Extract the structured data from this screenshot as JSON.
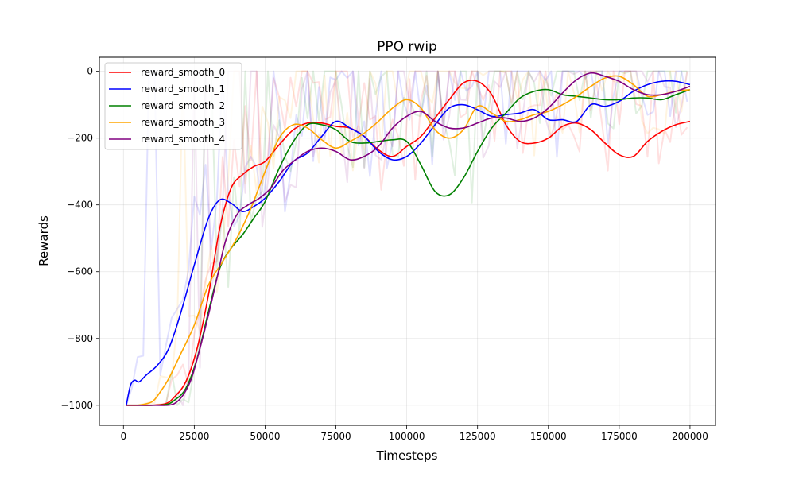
{
  "chart_data": {
    "type": "line",
    "title": "PPO rwip",
    "xlabel": "Timesteps",
    "ylabel": "Rewards",
    "xlim": [
      -8500,
      209000
    ],
    "ylim": [
      -1060,
      42
    ],
    "xticks": [
      0,
      25000,
      50000,
      75000,
      100000,
      125000,
      150000,
      175000,
      200000
    ],
    "yticks": [
      -1000,
      -800,
      -600,
      -400,
      -200,
      0
    ],
    "grid": true,
    "legend_position": "top-left",
    "series": [
      {
        "name": "reward_smooth_0",
        "color": "#ff0000",
        "x": [
          1000,
          5000,
          10000,
          15000,
          18000,
          22000,
          26000,
          30000,
          34000,
          38000,
          42000,
          46000,
          50000,
          55000,
          60000,
          65000,
          70000,
          75000,
          80000,
          85000,
          90000,
          95000,
          100000,
          105000,
          110000,
          115000,
          120000,
          125000,
          130000,
          135000,
          140000,
          145000,
          150000,
          155000,
          160000,
          165000,
          170000,
          175000,
          180000,
          185000,
          190000,
          195000,
          200000
        ],
        "y": [
          -1000,
          -1000,
          -1000,
          -995,
          -975,
          -930,
          -830,
          -670,
          -470,
          -350,
          -310,
          -285,
          -270,
          -220,
          -175,
          -155,
          -155,
          -165,
          -170,
          -195,
          -235,
          -255,
          -225,
          -195,
          -140,
          -85,
          -35,
          -30,
          -70,
          -160,
          -210,
          -215,
          -200,
          -165,
          -155,
          -175,
          -215,
          -250,
          -255,
          -210,
          -180,
          -160,
          -150
        ]
      },
      {
        "name": "reward_smooth_1",
        "color": "#0000ff",
        "x": [
          1000,
          2500,
          4000,
          5500,
          8000,
          12000,
          16000,
          20000,
          25000,
          30000,
          34000,
          38000,
          42000,
          46000,
          50000,
          55000,
          60000,
          65000,
          70000,
          75000,
          80000,
          85000,
          90000,
          95000,
          100000,
          105000,
          110000,
          115000,
          120000,
          125000,
          130000,
          135000,
          140000,
          145000,
          150000,
          155000,
          160000,
          165000,
          170000,
          175000,
          180000,
          185000,
          190000,
          195000,
          200000
        ],
        "y": [
          -1000,
          -940,
          -925,
          -930,
          -910,
          -880,
          -830,
          -730,
          -580,
          -440,
          -385,
          -395,
          -420,
          -405,
          -380,
          -330,
          -270,
          -245,
          -195,
          -150,
          -170,
          -195,
          -240,
          -265,
          -255,
          -215,
          -160,
          -110,
          -100,
          -115,
          -135,
          -130,
          -125,
          -115,
          -145,
          -145,
          -150,
          -100,
          -105,
          -90,
          -60,
          -40,
          -30,
          -30,
          -40
        ]
      },
      {
        "name": "reward_smooth_2",
        "color": "#008000",
        "x": [
          1000,
          5000,
          10000,
          15000,
          18000,
          22000,
          26000,
          30000,
          34000,
          38000,
          42000,
          46000,
          50000,
          55000,
          60000,
          65000,
          70000,
          75000,
          80000,
          85000,
          90000,
          95000,
          100000,
          105000,
          110000,
          115000,
          120000,
          125000,
          130000,
          135000,
          140000,
          145000,
          150000,
          155000,
          160000,
          165000,
          170000,
          175000,
          180000,
          185000,
          190000,
          195000,
          200000
        ],
        "y": [
          -1000,
          -1000,
          -1000,
          -998,
          -985,
          -950,
          -860,
          -720,
          -590,
          -530,
          -490,
          -440,
          -390,
          -290,
          -210,
          -160,
          -160,
          -175,
          -210,
          -215,
          -210,
          -205,
          -210,
          -280,
          -360,
          -370,
          -320,
          -240,
          -170,
          -125,
          -80,
          -60,
          -55,
          -70,
          -75,
          -80,
          -85,
          -85,
          -80,
          -80,
          -85,
          -70,
          -55
        ]
      },
      {
        "name": "reward_smooth_3",
        "color": "#ffa500",
        "x": [
          1000,
          5000,
          10000,
          13000,
          16000,
          20000,
          25000,
          30000,
          35000,
          40000,
          45000,
          50000,
          55000,
          60000,
          65000,
          70000,
          75000,
          80000,
          85000,
          90000,
          95000,
          100000,
          105000,
          110000,
          115000,
          120000,
          125000,
          130000,
          135000,
          140000,
          145000,
          150000,
          155000,
          160000,
          165000,
          170000,
          175000,
          180000,
          185000,
          190000,
          195000,
          200000
        ],
        "y": [
          -1000,
          -1000,
          -990,
          -960,
          -920,
          -850,
          -760,
          -640,
          -570,
          -500,
          -410,
          -300,
          -200,
          -160,
          -170,
          -205,
          -230,
          -210,
          -185,
          -150,
          -110,
          -85,
          -110,
          -175,
          -200,
          -175,
          -105,
          -125,
          -150,
          -145,
          -130,
          -120,
          -100,
          -75,
          -45,
          -20,
          -15,
          -40,
          -75,
          -70,
          -60,
          -55
        ]
      },
      {
        "name": "reward_smooth_4",
        "color": "#800080",
        "x": [
          1000,
          5000,
          10000,
          15000,
          18000,
          21000,
          24000,
          27000,
          30000,
          33000,
          36000,
          40000,
          44000,
          48000,
          52000,
          56000,
          60000,
          65000,
          70000,
          75000,
          80000,
          85000,
          90000,
          95000,
          100000,
          105000,
          110000,
          115000,
          120000,
          125000,
          130000,
          135000,
          140000,
          145000,
          150000,
          155000,
          160000,
          165000,
          170000,
          175000,
          180000,
          185000,
          190000,
          195000,
          200000
        ],
        "y": [
          -1000,
          -1000,
          -1000,
          -1000,
          -995,
          -970,
          -920,
          -830,
          -730,
          -620,
          -510,
          -430,
          -400,
          -380,
          -350,
          -300,
          -270,
          -240,
          -230,
          -240,
          -265,
          -255,
          -225,
          -170,
          -135,
          -120,
          -150,
          -170,
          -170,
          -155,
          -140,
          -140,
          -150,
          -140,
          -110,
          -65,
          -25,
          -5,
          -15,
          -30,
          -55,
          -70,
          -70,
          -60,
          -45
        ]
      }
    ]
  }
}
